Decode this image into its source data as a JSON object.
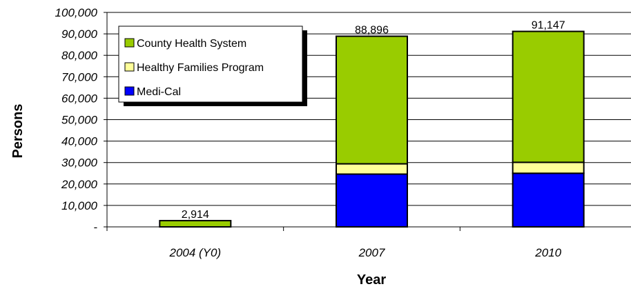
{
  "chart_data": {
    "type": "bar",
    "stacked": true,
    "categories": [
      "2004 (Y0)",
      "2007",
      "2010"
    ],
    "series": [
      {
        "name": "Medi-Cal",
        "color": "#0000ff",
        "values": [
          0,
          24600,
          25000
        ]
      },
      {
        "name": "Healthy Families Program",
        "color": "#ffff99",
        "values": [
          0,
          4800,
          5100
        ]
      },
      {
        "name": "County Health System",
        "color": "#99cc00",
        "values": [
          2914,
          59496,
          61047
        ]
      }
    ],
    "totals": [
      "2,914",
      "88,896",
      "91,147"
    ],
    "xlabel": "Year",
    "ylabel": "Persons",
    "ylim": [
      0,
      100000
    ],
    "yticks": [
      {
        "value": 0,
        "label": "-"
      },
      {
        "value": 10000,
        "label": "10,000"
      },
      {
        "value": 20000,
        "label": "20,000"
      },
      {
        "value": 30000,
        "label": "30,000"
      },
      {
        "value": 40000,
        "label": "40,000"
      },
      {
        "value": 50000,
        "label": "50,000"
      },
      {
        "value": 60000,
        "label": "60,000"
      },
      {
        "value": 70000,
        "label": "70,000"
      },
      {
        "value": 80000,
        "label": "80,000"
      },
      {
        "value": 90000,
        "label": "90,000"
      },
      {
        "value": 100000,
        "label": "100,000"
      }
    ],
    "legend": {
      "placement": "top-left",
      "items": [
        "County Health System",
        "Healthy Families Program",
        "Medi-Cal"
      ]
    },
    "grid": true
  }
}
